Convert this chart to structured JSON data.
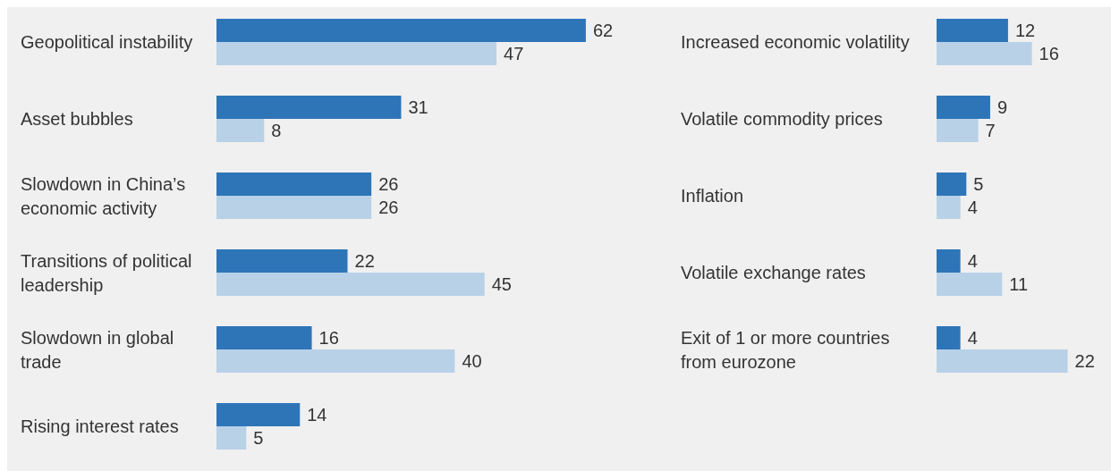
{
  "chart_data": [
    {
      "type": "bar",
      "orientation": "horizontal",
      "data_labels": true,
      "tick_labels": "y",
      "categories": [
        "Geopolitical instability",
        "Asset bubbles",
        "Slowdown in China’s economic activity",
        "Transitions of political leadership",
        "Slowdown in global trade",
        "Rising interest rates"
      ],
      "series": [
        {
          "color": "#2e75b8",
          "values": [
            62,
            31,
            26,
            22,
            16,
            14
          ]
        },
        {
          "color": "#b8d1e7",
          "values": [
            47,
            8,
            26,
            45,
            40,
            5
          ]
        }
      ]
    },
    {
      "type": "bar",
      "orientation": "horizontal",
      "data_labels": true,
      "tick_labels": "y",
      "categories": [
        "Increased economic volatility",
        "Volatile commodity prices",
        "Inflation",
        "Volatile exchange rates",
        "Exit of 1 or more countries from eurozone"
      ],
      "series": [
        {
          "color": "#2e75b8",
          "values": [
            12,
            9,
            5,
            4,
            4
          ]
        },
        {
          "color": "#b8d1e7",
          "values": [
            16,
            7,
            4,
            11,
            22
          ]
        }
      ]
    }
  ]
}
